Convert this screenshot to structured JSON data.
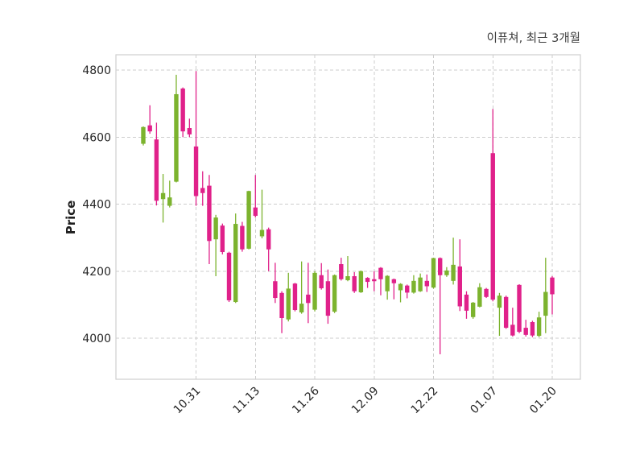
{
  "title": "이퓨쳐, 최근 3개월",
  "y_axis": {
    "label": "Price",
    "ticks": [
      4800,
      4600,
      4400,
      4200,
      4000
    ],
    "range": [
      3877,
      4845
    ]
  },
  "x_axis": {
    "tick_labels": [
      "10.31",
      "11.13",
      "11.26",
      "12.09",
      "12.22",
      "01.07",
      "01.20"
    ],
    "tick_indices": [
      8,
      17,
      26,
      35,
      44,
      53,
      62
    ]
  },
  "colors": {
    "up": "#7cb32e",
    "down": "#e0218a",
    "grid": "#cdcdcd",
    "spine": "#cfcfcf",
    "tick_text": "#262626",
    "title_text": "#3d3d3d",
    "background": "#ffffff"
  },
  "chart_data": {
    "type": "candlestick",
    "title": "이퓨쳐, 최근 3개월",
    "ylabel": "Price",
    "ylim": [
      3877,
      4845
    ],
    "grid": "dashed",
    "legend_position": "none",
    "up_means": "close >= open (green)",
    "down_means": "close < open (pink)",
    "ohlc_format": [
      "open",
      "high",
      "low",
      "close"
    ],
    "candles": [
      [
        4580,
        4632,
        4575,
        4630
      ],
      [
        4635,
        4695,
        4610,
        4617
      ],
      [
        4593,
        4643,
        4396,
        4410
      ],
      [
        4415,
        4490,
        4345,
        4433
      ],
      [
        4395,
        4470,
        4390,
        4420
      ],
      [
        4467,
        4786,
        4465,
        4728
      ],
      [
        4745,
        4748,
        4600,
        4617
      ],
      [
        4627,
        4655,
        4600,
        4608
      ],
      [
        4572,
        4797,
        4395,
        4424
      ],
      [
        4448,
        4498,
        4395,
        4433
      ],
      [
        4455,
        4487,
        4221,
        4290
      ],
      [
        4295,
        4368,
        4185,
        4360
      ],
      [
        4336,
        4342,
        4250,
        4257
      ],
      [
        4255,
        4258,
        4108,
        4113
      ],
      [
        4108,
        4372,
        4105,
        4341
      ],
      [
        4335,
        4347,
        4258,
        4265
      ],
      [
        4267,
        4440,
        4265,
        4439
      ],
      [
        4390,
        4487,
        4360,
        4365
      ],
      [
        4304,
        4443,
        4298,
        4323
      ],
      [
        4325,
        4330,
        4200,
        4265
      ],
      [
        4170,
        4225,
        4105,
        4120
      ],
      [
        4135,
        4140,
        4015,
        4060
      ],
      [
        4056,
        4195,
        4050,
        4148
      ],
      [
        4163,
        4165,
        4080,
        4084
      ],
      [
        4077,
        4229,
        4073,
        4103
      ],
      [
        4130,
        4225,
        4045,
        4105
      ],
      [
        4085,
        4200,
        4080,
        4195
      ],
      [
        4188,
        4224,
        4145,
        4149
      ],
      [
        4170,
        4205,
        4043,
        4067
      ],
      [
        4079,
        4190,
        4075,
        4188
      ],
      [
        4221,
        4240,
        4172,
        4176
      ],
      [
        4173,
        4245,
        4170,
        4185
      ],
      [
        4185,
        4197,
        4135,
        4140
      ],
      [
        4137,
        4202,
        4135,
        4200
      ],
      [
        4180,
        4182,
        4150,
        4168
      ],
      [
        4176,
        4200,
        4140,
        4170
      ],
      [
        4210,
        4212,
        4128,
        4176
      ],
      [
        4140,
        4188,
        4115,
        4186
      ],
      [
        4176,
        4178,
        4116,
        4164
      ],
      [
        4143,
        4164,
        4107,
        4162
      ],
      [
        4157,
        4160,
        4119,
        4136
      ],
      [
        4136,
        4188,
        4133,
        4171
      ],
      [
        4140,
        4193,
        4138,
        4181
      ],
      [
        4171,
        4190,
        4138,
        4155
      ],
      [
        4151,
        4240,
        4148,
        4239
      ],
      [
        4239,
        4241,
        3952,
        4188
      ],
      [
        4188,
        4212,
        4183,
        4202
      ],
      [
        4171,
        4300,
        4160,
        4219
      ],
      [
        4214,
        4295,
        4081,
        4095
      ],
      [
        4130,
        4140,
        4058,
        4082
      ],
      [
        4063,
        4108,
        4058,
        4106
      ],
      [
        4094,
        4164,
        4092,
        4152
      ],
      [
        4147,
        4150,
        4120,
        4123
      ],
      [
        4552,
        4684,
        4110,
        4115
      ],
      [
        4091,
        4135,
        4007,
        4127
      ],
      [
        4123,
        4127,
        4028,
        4031
      ],
      [
        4040,
        4091,
        4005,
        4008
      ],
      [
        4159,
        4161,
        4015,
        4019
      ],
      [
        4031,
        4055,
        4005,
        4010
      ],
      [
        4048,
        4052,
        4003,
        4008
      ],
      [
        4007,
        4079,
        4003,
        4062
      ],
      [
        4067,
        4240,
        4015,
        4138
      ],
      [
        4181,
        4185,
        4071,
        4131
      ]
    ]
  }
}
